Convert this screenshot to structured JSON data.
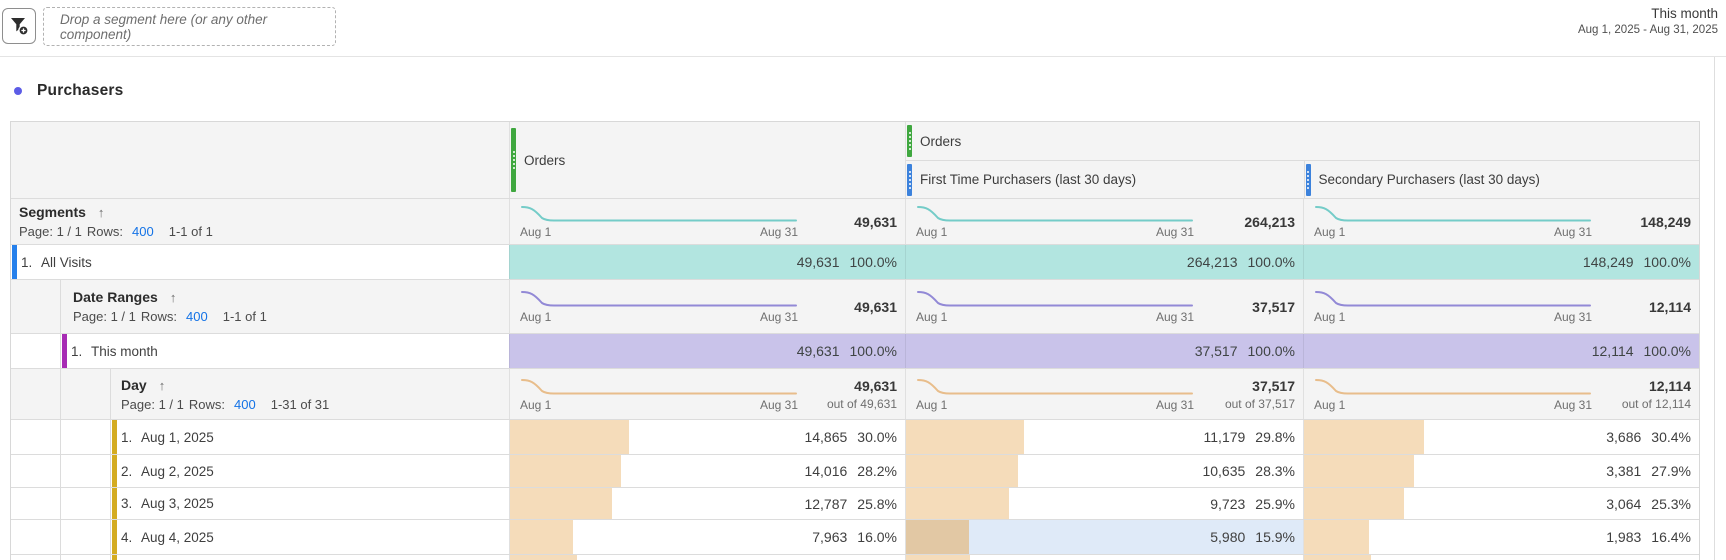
{
  "topbar": {
    "drop_placeholder": "Drop a segment here (or any other component)",
    "range_title": "This month",
    "range_dates": "Aug 1, 2025 - Aug 31, 2025"
  },
  "panel": {
    "title": "Purchasers"
  },
  "header": {
    "orders": "Orders",
    "group_orders": "Orders",
    "first_time": "First Time Purchasers (last 30 days)",
    "secondary": "Secondary Purchasers (last 30 days)"
  },
  "segments": {
    "title": "Segments",
    "sort": "↑",
    "page_prefix": "Page: 1 / 1",
    "rows_label": "Rows:",
    "rows_value": "400",
    "range": "1-1 of 1",
    "spark_start": "Aug 1",
    "spark_end": "Aug 31",
    "totals": [
      "49,631",
      "264,213",
      "148,249"
    ]
  },
  "all_visits": {
    "index": "1.",
    "label": "All Visits",
    "cells": [
      {
        "v": "49,631",
        "p": "100.0%"
      },
      {
        "v": "264,213",
        "p": "100.0%"
      },
      {
        "v": "148,249",
        "p": "100.0%"
      }
    ]
  },
  "date_ranges": {
    "title": "Date Ranges",
    "sort": "↑",
    "page_prefix": "Page: 1 / 1",
    "rows_label": "Rows:",
    "rows_value": "400",
    "range": "1-1 of 1",
    "spark_start": "Aug 1",
    "spark_end": "Aug 31",
    "totals": [
      "49,631",
      "37,517",
      "12,114"
    ]
  },
  "this_month": {
    "index": "1.",
    "label": "This month",
    "cells": [
      {
        "v": "49,631",
        "p": "100.0%"
      },
      {
        "v": "37,517",
        "p": "100.0%"
      },
      {
        "v": "12,114",
        "p": "100.0%"
      }
    ]
  },
  "day": {
    "title": "Day",
    "sort": "↑",
    "page_prefix": "Page: 1 / 1",
    "rows_label": "Rows:",
    "rows_value": "400",
    "range": "1-31 of 31",
    "spark_start": "Aug 1",
    "spark_end": "Aug 31",
    "totals": [
      {
        "v": "49,631",
        "out": "out of 49,631"
      },
      {
        "v": "37,517",
        "out": "out of 37,517"
      },
      {
        "v": "12,114",
        "out": "out of 12,114"
      }
    ]
  },
  "day_rows": [
    {
      "index": "1.",
      "label": "Aug 1, 2025",
      "cells": [
        {
          "v": "14,865",
          "p": "30.0%",
          "pct": 30.0
        },
        {
          "v": "11,179",
          "p": "29.8%",
          "pct": 29.8
        },
        {
          "v": "3,686",
          "p": "30.4%",
          "pct": 30.4
        }
      ]
    },
    {
      "index": "2.",
      "label": "Aug 2, 2025",
      "cells": [
        {
          "v": "14,016",
          "p": "28.2%",
          "pct": 28.2
        },
        {
          "v": "10,635",
          "p": "28.3%",
          "pct": 28.3
        },
        {
          "v": "3,381",
          "p": "27.9%",
          "pct": 27.9
        }
      ]
    },
    {
      "index": "3.",
      "label": "Aug 3, 2025",
      "cells": [
        {
          "v": "12,787",
          "p": "25.8%",
          "pct": 25.8
        },
        {
          "v": "9,723",
          "p": "25.9%",
          "pct": 25.9
        },
        {
          "v": "3,064",
          "p": "25.3%",
          "pct": 25.3
        }
      ]
    },
    {
      "index": "4.",
      "label": "Aug 4, 2025",
      "cells": [
        {
          "v": "7,963",
          "p": "16.0%",
          "pct": 16.0,
          "selected": false
        },
        {
          "v": "5,980",
          "p": "15.9%",
          "pct": 15.9,
          "selected": true
        },
        {
          "v": "1,983",
          "p": "16.4%",
          "pct": 16.4,
          "selected": false
        }
      ]
    }
  ],
  "partial_row": {
    "pct": [
      17,
      16,
      17
    ]
  },
  "colors": {
    "teal_row_bg": "#b2e5e0",
    "purple_row_bg": "#c9c3ea",
    "spark_teal": "#74ccc8",
    "spark_purple": "#9289d6",
    "spark_orange": "#e8bd8b",
    "bar_tan": "#f5dcba",
    "bar_tan_selected": "#e2c8a4",
    "cell_selected_bg": "#dfeaf8",
    "column_handle_green": "#3fa73f",
    "column_handle_blue": "#3c82dc",
    "accent_blue": "#2680eb",
    "accent_magenta": "#a72bb4",
    "accent_gold": "#d4ac22",
    "link_blue": "#1473e6",
    "title_dot": "#5c5ce6",
    "header_row_bg": "#f4f4f4"
  }
}
